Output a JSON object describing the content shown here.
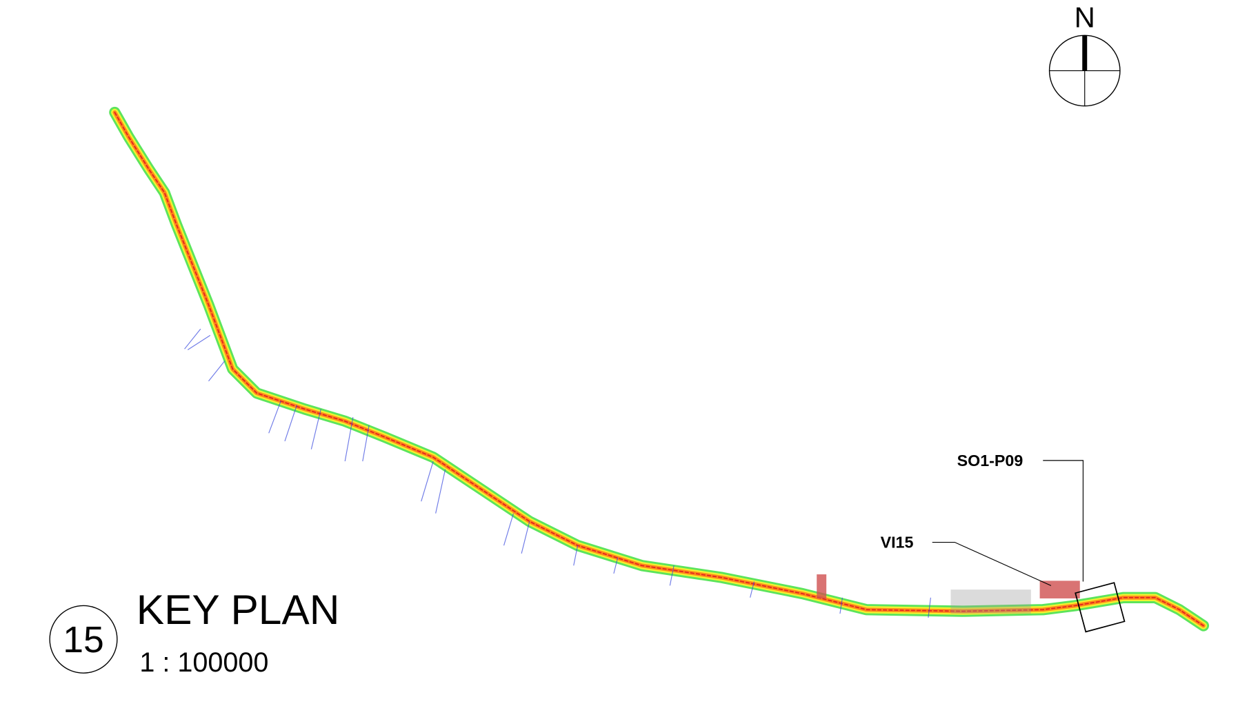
{
  "north_label": "N",
  "callouts": [
    {
      "label": "SO1-P09"
    },
    {
      "label": "VI15"
    }
  ],
  "title_block": {
    "number": "15",
    "title": "KEY PLAN",
    "scale": "1 : 100000"
  }
}
